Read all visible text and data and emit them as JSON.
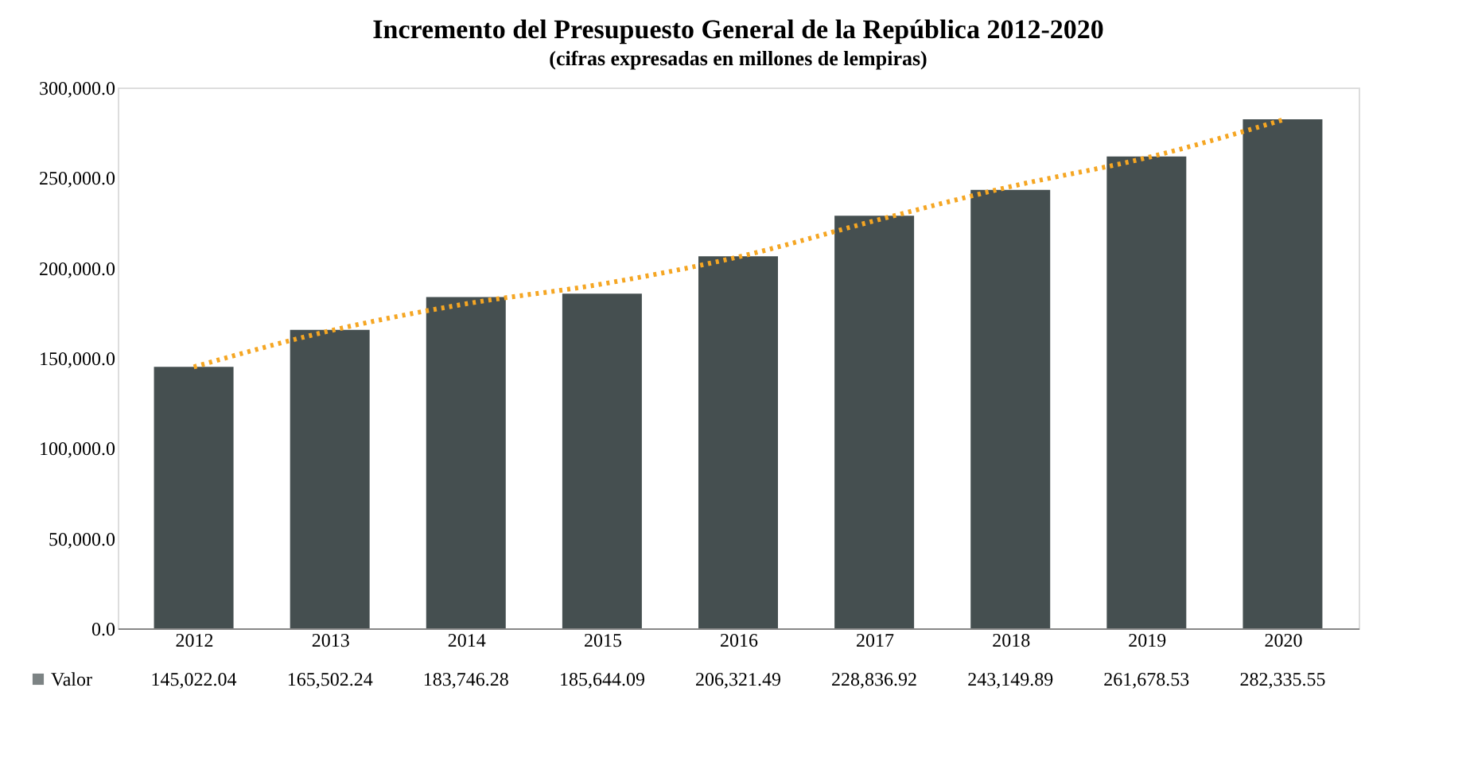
{
  "chart_data": {
    "type": "bar",
    "title": "Incremento del Presupuesto General de la República 2012-2020",
    "subtitle": "(cifras expresadas en millones de lempiras)",
    "categories": [
      "2012",
      "2013",
      "2014",
      "2015",
      "2016",
      "2017",
      "2018",
      "2019",
      "2020"
    ],
    "series": [
      {
        "name": "Valor",
        "color": "#454f50",
        "values": [
          145022.04,
          165502.24,
          183746.28,
          185644.09,
          206321.49,
          228836.92,
          243149.89,
          261678.53,
          282335.55
        ],
        "value_labels": [
          "145,022.04",
          "165,502.24",
          "183,746.28",
          "185,644.09",
          "206,321.49",
          "228,836.92",
          "243,149.89",
          "261,678.53",
          "282,335.55"
        ]
      },
      {
        "type": "line",
        "color": "#f5a623",
        "line_style": "dotted",
        "values": [
          145000,
          165000,
          180000,
          191000,
          206000,
          226000,
          245000,
          261000,
          282000
        ]
      }
    ],
    "ylim": [
      0,
      300000
    ],
    "yticks": [
      {
        "value": 0,
        "label": "0.0"
      },
      {
        "value": 50000,
        "label": "50,000.0"
      },
      {
        "value": 100000,
        "label": "100,000.0"
      },
      {
        "value": 150000,
        "label": "150,000.0"
      },
      {
        "value": 200000,
        "label": "200,000.0"
      },
      {
        "value": 250000,
        "label": "250,000.0"
      },
      {
        "value": 300000,
        "label": "300,000.0"
      }
    ],
    "grid": false,
    "legend": "bottom left"
  }
}
